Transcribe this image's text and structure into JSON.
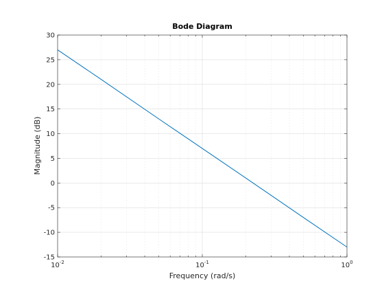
{
  "chart_data": {
    "type": "line",
    "title": "Bode Diagram",
    "xlabel": "Frequency  (rad/s)",
    "ylabel": "Magnitude (dB)",
    "xscale": "log",
    "xlim": [
      0.01,
      1
    ],
    "ylim": [
      -15,
      30
    ],
    "xticks": [
      {
        "value": 0.01,
        "base": "10",
        "exp": "-2"
      },
      {
        "value": 0.1,
        "base": "10",
        "exp": "-1"
      },
      {
        "value": 1,
        "base": "10",
        "exp": "0"
      }
    ],
    "yticks": [
      30,
      25,
      20,
      15,
      10,
      5,
      0,
      -5,
      -10,
      -15
    ],
    "grid": true,
    "minor_grid": true,
    "colors": {
      "line": "#0072bd",
      "axis": "#262626",
      "major_grid": "#dcdcdc",
      "minor_grid": "#e6e6e6"
    },
    "series": [
      {
        "x": [
          0.01,
          0.02,
          0.05,
          0.1,
          0.2,
          0.5,
          1
        ],
        "y": [
          27,
          21,
          13,
          7,
          1,
          -7,
          -13
        ]
      }
    ]
  }
}
